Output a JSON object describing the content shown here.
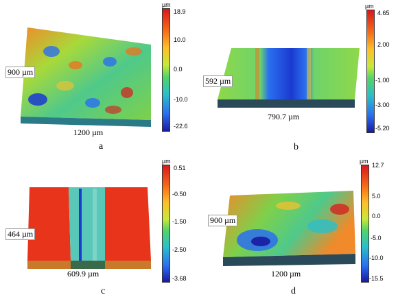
{
  "panels": [
    {
      "letter": "a",
      "width_label": "1200 µm",
      "depth_label": "900  µm",
      "unit": "µm",
      "ticks": [
        "18.9",
        "10.0",
        "0.0",
        "-10.0",
        "-22.6"
      ]
    },
    {
      "letter": "b",
      "width_label": "790.7 µm",
      "depth_label": "592 µm",
      "unit": "µm",
      "ticks": [
        "4.65",
        "2.00",
        "-1.00",
        "-3.00",
        "-5.20"
      ]
    },
    {
      "letter": "c",
      "width_label": "609.9 µm",
      "depth_label": "464 µm",
      "unit": "µm",
      "ticks": [
        "0.51",
        "-0.50",
        "-1.50",
        "-2.50",
        "-3.68"
      ]
    },
    {
      "letter": "d",
      "width_label": "1200 µm",
      "depth_label": "900 µm",
      "unit": "µm",
      "ticks": [
        "12.7",
        "5.0",
        "0.0",
        "-5.0",
        "-10.0",
        "-15.5"
      ]
    }
  ]
}
